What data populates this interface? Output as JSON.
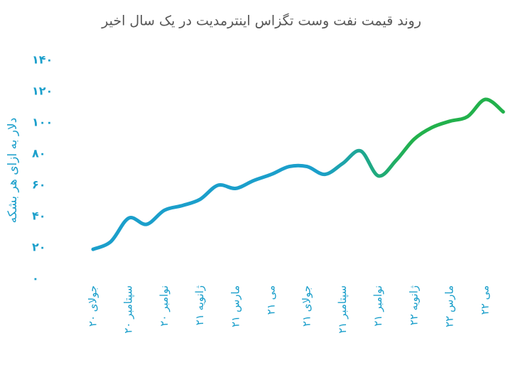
{
  "chart_data": {
    "type": "line",
    "title": "روند قیمت نفت وست تگزاس اینترمدیت در یک سال اخیر",
    "y_label": "دلار به ازای هر بشکه",
    "categories": [
      "جولای ۲۰",
      null,
      "سپتامبر ۲۰",
      null,
      "نوامبر ۲۰",
      null,
      "ژانویه ۲۱",
      null,
      "مارس ۲۱",
      null,
      "می ۲۱",
      null,
      "جولای ۲۱",
      null,
      "سپتامبر ۲۱",
      null,
      "نوامبر ۲۱",
      null,
      "ژانویه ۲۲",
      null,
      "مارس ۲۲",
      null,
      "می ۲۲",
      null
    ],
    "series": [
      {
        "colors": [
          "#1b9fcb",
          "#22b14c"
        ],
        "values": [
          19,
          24,
          39,
          35,
          44,
          47,
          51,
          60,
          58,
          63,
          67,
          72,
          72,
          67,
          74,
          82,
          66,
          76,
          89.5,
          97,
          101,
          104,
          115,
          107
        ]
      }
    ],
    "ylim": [
      0,
      140
    ],
    "yticks": [
      {
        "value": 0,
        "label": "۰"
      },
      {
        "value": 20,
        "label": "۲۰"
      },
      {
        "value": 40,
        "label": "۴۰"
      },
      {
        "value": 60,
        "label": "۶۰"
      },
      {
        "value": 80,
        "label": "۸۰"
      },
      {
        "value": 100,
        "label": "۱۰۰"
      },
      {
        "value": 120,
        "label": "۱۲۰"
      },
      {
        "value": 140,
        "label": "۱۴۰"
      }
    ],
    "grid": false
  }
}
